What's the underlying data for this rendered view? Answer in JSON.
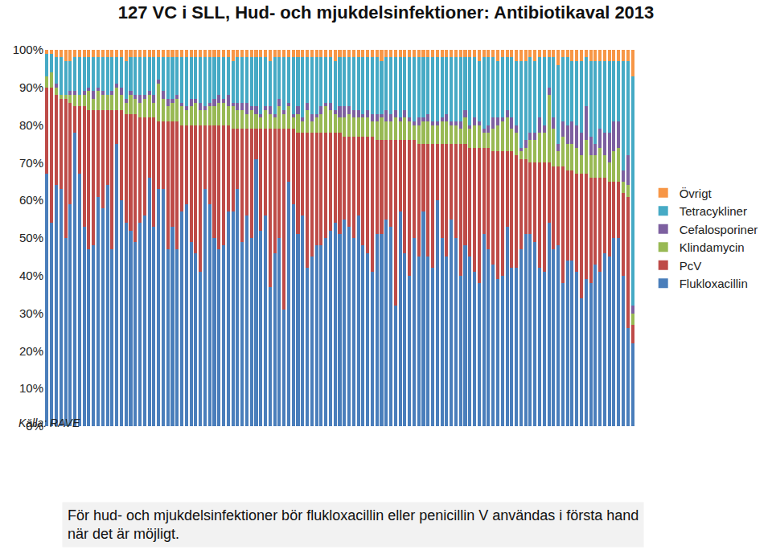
{
  "chart_data": {
    "type": "bar",
    "stacked": true,
    "title": "127 VC i SLL, Hud- och mjukdelsinfektioner: Antibiotikaval 2013",
    "subtitle": "Källa: RAVE",
    "annotations": [
      "För hud- och mjukdelsinfektioner bör flukloxacillin eller penicillin V användas i första hand\nnär det är möjligt."
    ],
    "ylim": [
      0,
      100
    ],
    "yticks": [
      {
        "value": 0,
        "label": "0%"
      },
      {
        "value": 10,
        "label": "10%"
      },
      {
        "value": 20,
        "label": "20%"
      },
      {
        "value": 30,
        "label": "30%"
      },
      {
        "value": 40,
        "label": "40%"
      },
      {
        "value": 50,
        "label": "50%"
      },
      {
        "value": 60,
        "label": "60%"
      },
      {
        "value": 70,
        "label": "70%"
      },
      {
        "value": 80,
        "label": "80%"
      },
      {
        "value": 90,
        "label": "90%"
      },
      {
        "value": 100,
        "label": "100%"
      }
    ],
    "grid": false,
    "legend": "right",
    "tick_labels": "y",
    "categories": [
      null,
      null,
      null,
      null,
      null,
      null,
      null,
      null,
      null,
      null,
      null,
      null,
      null,
      null,
      null,
      null,
      null,
      null,
      null,
      null,
      null,
      null,
      null,
      null,
      null,
      null,
      null,
      null,
      null,
      null,
      null,
      null,
      null,
      null,
      null,
      null,
      null,
      null,
      null,
      null,
      null,
      null,
      null,
      null,
      null,
      null,
      null,
      null,
      null,
      null,
      null,
      null,
      null,
      null,
      null,
      null,
      null,
      null,
      null,
      null,
      null,
      null,
      null,
      null,
      null,
      null,
      null,
      null,
      null,
      null,
      null,
      null,
      null,
      null,
      null,
      null,
      null,
      null,
      null,
      null,
      null,
      null,
      null,
      null,
      null,
      null,
      null,
      null,
      null,
      null,
      null,
      null,
      null,
      null,
      null,
      null,
      null,
      null,
      null,
      null,
      null,
      null,
      null,
      null,
      null,
      null,
      null,
      null,
      null,
      null,
      null,
      null,
      null,
      null,
      null,
      null,
      null,
      null,
      null,
      null,
      null,
      null,
      null,
      null,
      null,
      null,
      null
    ],
    "series": [
      {
        "name": "Flukloxacillin",
        "color": "#4a7ebb",
        "values": [
          67,
          54,
          64,
          63,
          50,
          59,
          78,
          67,
          53,
          47,
          48,
          61,
          58,
          64,
          47,
          75,
          60,
          54,
          52,
          49,
          54,
          56,
          66,
          53,
          63,
          63,
          47,
          53,
          47,
          57,
          59,
          49,
          46,
          41,
          63,
          59,
          50,
          47,
          48,
          57,
          57,
          63,
          49,
          56,
          50,
          71,
          52,
          56,
          37,
          46,
          50,
          31,
          65,
          59,
          51,
          56,
          42,
          45,
          48,
          48,
          50,
          52,
          54,
          51,
          55,
          53,
          50,
          56,
          48,
          46,
          41,
          51,
          51,
          55,
          53,
          32,
          57,
          46,
          40,
          50,
          45,
          57,
          45,
          42,
          60,
          50,
          45,
          55,
          50,
          40,
          48,
          45,
          41,
          38,
          51,
          47,
          43,
          39,
          40,
          53,
          42,
          42,
          47,
          51,
          51,
          49,
          42,
          41,
          54,
          47,
          48,
          38,
          44,
          44,
          41,
          34,
          39,
          38,
          43,
          41,
          46,
          45,
          50,
          50,
          40,
          26,
          22
        ]
      },
      {
        "name": "PcV",
        "color": "#be4b48",
        "values": [
          23,
          36,
          24,
          24,
          37,
          27,
          7,
          18,
          32,
          37,
          36,
          23,
          26,
          20,
          37,
          9,
          24,
          29,
          31,
          34,
          28,
          26,
          16,
          29,
          18,
          18,
          34,
          28,
          34,
          23,
          21,
          31,
          34,
          39,
          17,
          21,
          30,
          33,
          32,
          23,
          22,
          16,
          30,
          23,
          29,
          8,
          27,
          23,
          42,
          33,
          29,
          48,
          14,
          20,
          27,
          22,
          36,
          33,
          30,
          30,
          28,
          26,
          24,
          27,
          22,
          24,
          27,
          21,
          29,
          31,
          36,
          25,
          25,
          21,
          23,
          44,
          19,
          30,
          36,
          26,
          30,
          18,
          30,
          33,
          15,
          25,
          30,
          20,
          25,
          35,
          27,
          29,
          33,
          36,
          23,
          27,
          30,
          34,
          33,
          20,
          31,
          30,
          24,
          20,
          19,
          21,
          28,
          29,
          16,
          22,
          21,
          31,
          24,
          24,
          26,
          33,
          28,
          28,
          23,
          25,
          20,
          20,
          15,
          15,
          22,
          35,
          5
        ]
      },
      {
        "name": "Klindamycin",
        "color": "#98b954",
        "values": [
          3,
          4,
          2,
          1,
          1,
          2,
          3,
          3,
          3,
          5,
          3,
          5,
          4,
          4,
          4,
          6,
          4,
          3,
          5,
          4,
          4,
          5,
          6,
          4,
          10,
          6,
          4,
          5,
          6,
          5,
          4,
          5,
          6,
          4,
          4,
          5,
          5,
          6,
          6,
          5,
          6,
          5,
          5,
          4,
          5,
          4,
          3,
          5,
          4,
          3,
          6,
          4,
          6,
          3,
          5,
          3,
          6,
          3,
          4,
          5,
          7,
          6,
          5,
          4,
          5,
          6,
          5,
          5,
          5,
          5,
          4,
          5,
          6,
          5,
          5,
          6,
          5,
          6,
          5,
          4,
          5,
          6,
          6,
          5,
          5,
          6,
          6,
          5,
          5,
          4,
          7,
          5,
          6,
          6,
          4,
          4,
          6,
          7,
          8,
          9,
          6,
          6,
          2,
          3,
          6,
          6,
          8,
          8,
          18,
          10,
          4,
          8,
          7,
          7,
          7,
          5,
          9,
          6,
          6,
          8,
          6,
          5,
          8,
          9,
          3,
          3,
          3
        ]
      },
      {
        "name": "Cefalosporiner",
        "color": "#7d60a0",
        "values": [
          0,
          0,
          1,
          0,
          0,
          1,
          1,
          0,
          1,
          1,
          2,
          1,
          1,
          0,
          1,
          1,
          2,
          1,
          1,
          1,
          2,
          1,
          1,
          2,
          1,
          2,
          2,
          1,
          1,
          1,
          1,
          2,
          1,
          2,
          1,
          1,
          2,
          2,
          1,
          3,
          1,
          2,
          2,
          3,
          1,
          2,
          1,
          1,
          2,
          1,
          2,
          1,
          1,
          1,
          2,
          1,
          2,
          2,
          1,
          2,
          1,
          2,
          1,
          3,
          3,
          2,
          2,
          2,
          1,
          2,
          2,
          2,
          1,
          3,
          2,
          2,
          1,
          2,
          1,
          1,
          2,
          1,
          2,
          1,
          1,
          1,
          2,
          1,
          1,
          2,
          2,
          1,
          2,
          1,
          1,
          2,
          3,
          2,
          1,
          2,
          3,
          2,
          1,
          2,
          2,
          2,
          4,
          2,
          2,
          3,
          2,
          4,
          5,
          6,
          6,
          6,
          9,
          5,
          3,
          5,
          6,
          8,
          8,
          7,
          3,
          8,
          2
        ]
      },
      {
        "name": "Tetracykliner",
        "color": "#46aac5",
        "values": [
          6,
          5,
          7,
          10,
          9,
          8,
          9,
          10,
          9,
          8,
          9,
          8,
          9,
          10,
          9,
          7,
          8,
          10,
          9,
          10,
          10,
          10,
          9,
          10,
          6,
          9,
          11,
          11,
          10,
          12,
          13,
          11,
          11,
          12,
          13,
          12,
          11,
          10,
          11,
          10,
          11,
          12,
          12,
          12,
          13,
          13,
          15,
          13,
          12,
          15,
          11,
          14,
          12,
          15,
          13,
          16,
          12,
          15,
          15,
          13,
          12,
          12,
          13,
          13,
          13,
          13,
          14,
          14,
          15,
          14,
          15,
          15,
          14,
          14,
          15,
          14,
          16,
          14,
          16,
          17,
          16,
          16,
          15,
          17,
          17,
          16,
          15,
          17,
          17,
          17,
          14,
          18,
          16,
          16,
          19,
          18,
          16,
          15,
          16,
          14,
          16,
          17,
          23,
          21,
          20,
          19,
          16,
          18,
          8,
          16,
          21,
          17,
          18,
          16,
          17,
          19,
          13,
          20,
          22,
          18,
          19,
          19,
          16,
          16,
          29,
          25,
          61
        ]
      },
      {
        "name": "Övrigt",
        "color": "#f79646",
        "values": [
          1,
          1,
          2,
          2,
          3,
          3,
          2,
          2,
          2,
          2,
          2,
          2,
          2,
          2,
          2,
          2,
          2,
          3,
          2,
          2,
          2,
          2,
          2,
          2,
          2,
          2,
          2,
          2,
          2,
          2,
          2,
          2,
          2,
          2,
          2,
          2,
          2,
          2,
          2,
          2,
          3,
          2,
          2,
          2,
          2,
          2,
          2,
          2,
          3,
          2,
          2,
          2,
          2,
          2,
          2,
          2,
          2,
          2,
          2,
          2,
          2,
          2,
          3,
          2,
          2,
          2,
          2,
          2,
          2,
          2,
          2,
          2,
          3,
          2,
          2,
          2,
          2,
          2,
          2,
          2,
          2,
          2,
          2,
          2,
          2,
          2,
          2,
          2,
          2,
          2,
          2,
          2,
          2,
          3,
          2,
          2,
          2,
          3,
          2,
          2,
          2,
          3,
          3,
          3,
          2,
          3,
          2,
          2,
          2,
          2,
          4,
          2,
          2,
          3,
          3,
          3,
          2,
          3,
          3,
          3,
          3,
          3,
          3,
          3,
          3,
          3,
          7
        ]
      }
    ]
  }
}
